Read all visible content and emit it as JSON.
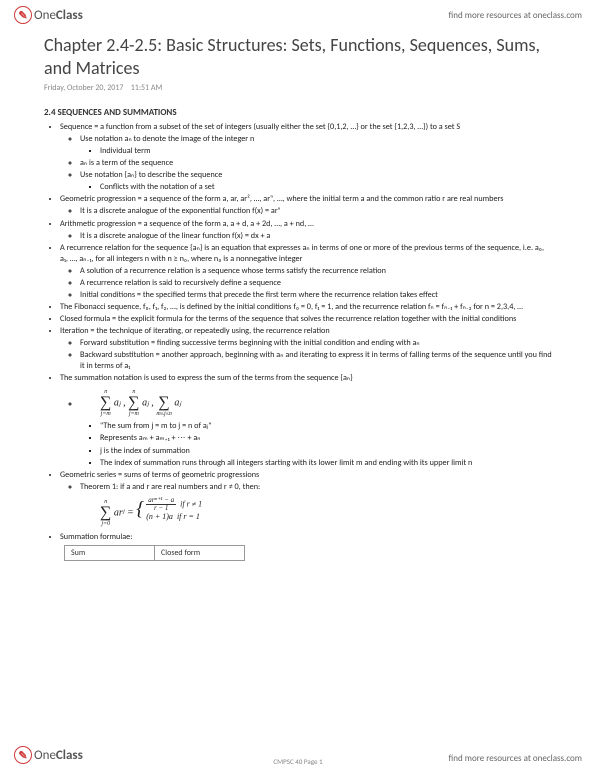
{
  "header": {
    "logo_one": "One",
    "logo_class": "Class",
    "link": "find more resources at oneclass.com"
  },
  "title": "Chapter 2.4-2.5: Basic Structures: Sets, Functions, Sequences, Sums, and Matrices",
  "meta": {
    "date": "Friday, October 20, 2017",
    "time": "11:51 AM"
  },
  "section": "2.4 SEQUENCES AND SUMMATIONS",
  "bullets": {
    "b1": "Sequence = a function from a subset of the set of integers (usually either the set {0,1,2, …} or the set {1,2,3, …}) to a set S",
    "b1a": "Use notation aₙ to denote the image of the integer n",
    "b1a1": "Individual term",
    "b1b": "aₙ is a term of the sequence",
    "b1c": "Use notation {aₙ} to describe the sequence",
    "b1c1": "Conflicts with the notation of a set",
    "b2": "Geometric progression = a sequence of the form a, ar, ar², …, arⁿ, …, where the initial term a and the common ratio r are real numbers",
    "b2a": "It is a discrete analogue of the exponential function f(x) = arˣ",
    "b3": "Arithmetic progression = a sequence of the form a, a + d, a + 2d, …, a + nd, …",
    "b3a": "It is a discrete analogue of the linear function f(x) = dx + a",
    "b4": "A recurrence relation for the sequence {aₙ} is an equation that expresses aₙ in terms of one or more of the previous terms of the sequence, i.e. a₀, a₁, …, aₙ₋₁, for all integers n with n ≥ n₀, where n₀ is a nonnegative integer",
    "b4a": "A solution of a recurrence relation is a sequence whose terms satisfy the recurrence relation",
    "b4b": "A recurrence relation is said to recursively define a sequence",
    "b4c": "Initial conditions = the specified terms that precede the first term where the recurrence relation takes effect",
    "b5": "The Fibonacci sequence, f₀, f₁, f₂, …, is defined by the initial conditions f₀ = 0, f₁ = 1, and the recurrence relation fₙ = fₙ₋₁ + fₙ₋₂ for n = 2,3,4, …",
    "b6": "Closed formula = the explicit formula for the terms of the sequence that solves the recurrence relation together with the initial conditions",
    "b7": "Iteration = the technique of iterating, or repeatedly using, the recurrence relation",
    "b7a": "Forward substitution = finding successive terms beginning with the initial condition and ending with aₙ",
    "b7b": "Backward substitution = another approach, beginning with aₙ and iterating to express it in terms of falling terms of the sequence until you find it in terms of a₁",
    "b8": "The summation notation is used to express the sum of the terms from the sequence {aₙ}",
    "b8a1": "\"The sum from j = m to j = n of aⱼ\"",
    "b8a2": "Represents aₘ + aₘ₊₁ + ⋯ + aₙ",
    "b8a3": "j is the index of summation",
    "b8a4": "The index of summation runs through all integers starting with its lower limit m and ending with its upper limit n",
    "b9": "Geometric series = sums of terms of geometric progressions",
    "b9a": "Theorem 1: if a and r are real numbers and r ≠ 0, then:",
    "b10": "Summation formulae:"
  },
  "formula": {
    "sum_top": "n",
    "sum_bot1": "j=m",
    "sum_body": "aⱼ ,",
    "sum_bot2": "j=m",
    "sum_bot3": "m≤j≤n",
    "geo_top": "n",
    "geo_bot": "j=0",
    "geo_body": "arʲ =",
    "geo_case1_num": "arⁿ⁺¹ − a",
    "geo_case1_den": "r − 1",
    "geo_case1_cond": "if r ≠ 1",
    "geo_case2": "(n + 1)a",
    "geo_case2_cond": "if r = 1"
  },
  "table": {
    "h1": "Sum",
    "h2": "Closed form"
  },
  "footer": {
    "page": "CMPSC 40 Page 1"
  }
}
